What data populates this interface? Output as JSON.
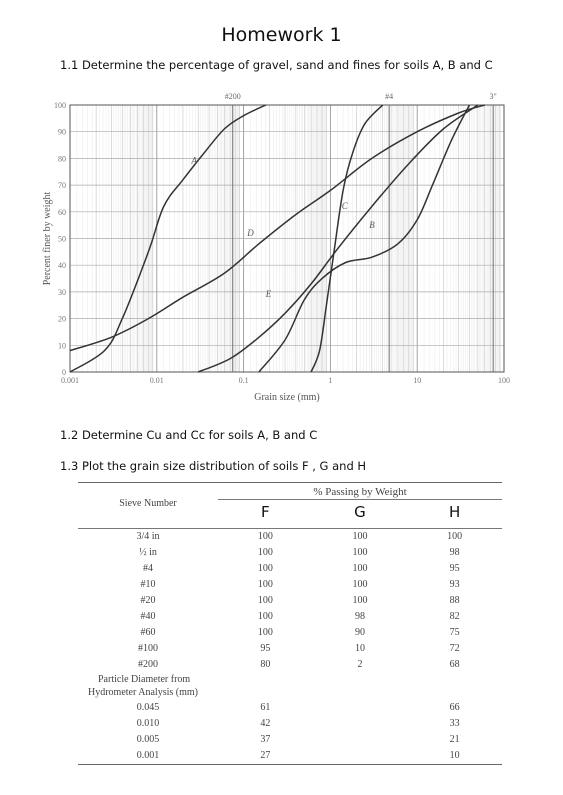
{
  "page": {
    "title": "Homework 1",
    "q1": "1.1 Determine the percentage of gravel, sand and fines for soils A, B and C",
    "q2": "1.2 Determine Cu and Cc for soils A, B and C",
    "q3": "1.3 Plot the grain size distribution of soils F , G and H"
  },
  "chart_data": {
    "type": "line",
    "xlabel": "Grain size (mm)",
    "ylabel": "Percent finer by weight",
    "x_scale": "log",
    "xlim": [
      0.001,
      100
    ],
    "ylim": [
      0,
      100
    ],
    "grid": true,
    "x_ticks": [
      "0.001",
      "0.01",
      "0.1",
      "1",
      "10",
      "100"
    ],
    "y_ticks": [
      "0",
      "10",
      "20",
      "30",
      "40",
      "50",
      "60",
      "70",
      "80",
      "90",
      "100"
    ],
    "sieve_labels": [
      {
        "label": "#200",
        "x": 0.075
      },
      {
        "label": "#4",
        "x": 4.75
      },
      {
        "label": "3\"",
        "x": 75
      }
    ],
    "series": [
      {
        "name": "A",
        "points": [
          [
            0.001,
            0
          ],
          [
            0.0025,
            8
          ],
          [
            0.004,
            20
          ],
          [
            0.008,
            45
          ],
          [
            0.012,
            62
          ],
          [
            0.02,
            72
          ],
          [
            0.035,
            82
          ],
          [
            0.06,
            91
          ],
          [
            0.1,
            96
          ],
          [
            0.18,
            100
          ]
        ]
      },
      {
        "name": "B",
        "points": [
          [
            0.15,
            0
          ],
          [
            0.3,
            12
          ],
          [
            0.5,
            27
          ],
          [
            0.8,
            35
          ],
          [
            1.5,
            41
          ],
          [
            3,
            43
          ],
          [
            6,
            48
          ],
          [
            10,
            57
          ],
          [
            15,
            70
          ],
          [
            25,
            87
          ],
          [
            40,
            100
          ]
        ]
      },
      {
        "name": "C",
        "points": [
          [
            0.6,
            0
          ],
          [
            0.75,
            8
          ],
          [
            0.9,
            25
          ],
          [
            1.1,
            45
          ],
          [
            1.4,
            68
          ],
          [
            1.8,
            82
          ],
          [
            2.5,
            93
          ],
          [
            4,
            100
          ]
        ]
      },
      {
        "name": "D",
        "points": [
          [
            0.001,
            8
          ],
          [
            0.003,
            13
          ],
          [
            0.008,
            20
          ],
          [
            0.02,
            28
          ],
          [
            0.06,
            37
          ],
          [
            0.15,
            48
          ],
          [
            0.4,
            59
          ],
          [
            1,
            68
          ],
          [
            3,
            80
          ],
          [
            10,
            90
          ],
          [
            30,
            97
          ],
          [
            60,
            100
          ]
        ]
      },
      {
        "name": "E",
        "points": [
          [
            0.03,
            0
          ],
          [
            0.07,
            5
          ],
          [
            0.15,
            13
          ],
          [
            0.3,
            22
          ],
          [
            0.6,
            33
          ],
          [
            1.2,
            46
          ],
          [
            3,
            62
          ],
          [
            8,
            78
          ],
          [
            20,
            91
          ],
          [
            50,
            100
          ]
        ]
      }
    ]
  },
  "table": {
    "sieve_header": "Sieve Number",
    "pw_header": "% Passing by Weight",
    "col_headers": [
      "F",
      "G",
      "H"
    ],
    "rows": [
      {
        "sieve": "3/4 in",
        "F": "100",
        "G": "100",
        "H": "100"
      },
      {
        "sieve": "½ in",
        "F": "100",
        "G": "100",
        "H": "98"
      },
      {
        "sieve": "#4",
        "F": "100",
        "G": "100",
        "H": "95"
      },
      {
        "sieve": "#10",
        "F": "100",
        "G": "100",
        "H": "93"
      },
      {
        "sieve": "#20",
        "F": "100",
        "G": "100",
        "H": "88"
      },
      {
        "sieve": "#40",
        "F": "100",
        "G": "98",
        "H": "82"
      },
      {
        "sieve": "#60",
        "F": "100",
        "G": "90",
        "H": "75"
      },
      {
        "sieve": "#100",
        "F": "95",
        "G": "10",
        "H": "72"
      },
      {
        "sieve": "#200",
        "F": "80",
        "G": "2",
        "H": "68"
      }
    ],
    "hydro_header_1": "Particle Diameter from",
    "hydro_header_2": "Hydrometer Analysis (mm)",
    "hydro_rows": [
      {
        "d": "0.045",
        "F": "61",
        "H": "66"
      },
      {
        "d": "0.010",
        "F": "42",
        "H": "33"
      },
      {
        "d": "0.005",
        "F": "37",
        "H": "21"
      },
      {
        "d": "0.001",
        "F": "27",
        "H": "10"
      }
    ]
  }
}
